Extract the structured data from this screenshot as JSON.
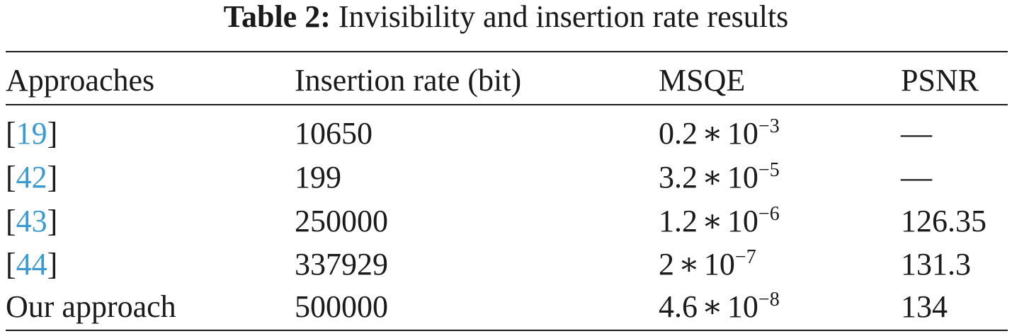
{
  "caption": {
    "label": "Table 2:",
    "text": "Invisibility and insertion rate results"
  },
  "table": {
    "headers": [
      "Approaches",
      "Insertion rate (bit)",
      "MSQE",
      "PSNR"
    ],
    "rows": [
      {
        "approach": {
          "open": "[",
          "ref": "19",
          "close": "]"
        },
        "insertion_rate": "10650",
        "msqe": {
          "mantissa": "0.2",
          "op": "∗",
          "base": "10",
          "exponent": "−3"
        },
        "psnr": "—"
      },
      {
        "approach": {
          "open": "[",
          "ref": "42",
          "close": "]"
        },
        "insertion_rate": "199",
        "msqe": {
          "mantissa": "3.2",
          "op": "∗",
          "base": "10",
          "exponent": "−5"
        },
        "psnr": "—"
      },
      {
        "approach": {
          "open": "[",
          "ref": "43",
          "close": "]"
        },
        "insertion_rate": "250000",
        "msqe": {
          "mantissa": "1.2",
          "op": "∗",
          "base": "10",
          "exponent": "−6"
        },
        "psnr": "126.35"
      },
      {
        "approach": {
          "open": "[",
          "ref": "44",
          "close": "]"
        },
        "insertion_rate": "337929",
        "msqe": {
          "mantissa": "2",
          "op": "∗",
          "base": "10",
          "exponent": "−7"
        },
        "psnr": "131.3"
      },
      {
        "approach": {
          "text": "Our approach"
        },
        "insertion_rate": "500000",
        "msqe": {
          "mantissa": "4.6",
          "op": "∗",
          "base": "10",
          "exponent": "−8"
        },
        "psnr": "134"
      }
    ]
  },
  "colors": {
    "text": "#1a1a1a",
    "citation_link": "#3b9bd0",
    "background": "#ffffff"
  }
}
